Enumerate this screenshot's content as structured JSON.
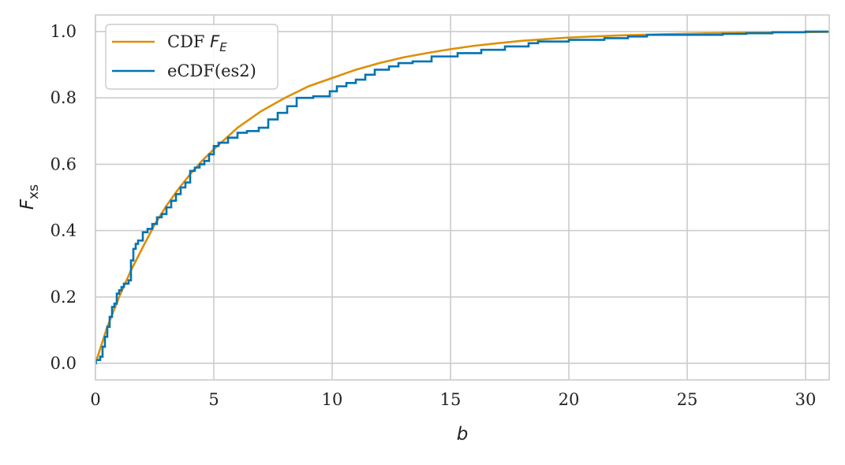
{
  "chart_data": {
    "type": "line",
    "title": "",
    "xlabel": "b",
    "ylabel": "F",
    "ylabel_subscript": "xs",
    "xlim": [
      0,
      31
    ],
    "ylim": [
      -0.05,
      1.05
    ],
    "xticks": [
      0,
      5,
      10,
      15,
      20,
      25,
      30
    ],
    "xtick_labels": [
      "0",
      "5",
      "10",
      "15",
      "20",
      "25",
      "30"
    ],
    "yticks": [
      0.0,
      0.2,
      0.4,
      0.6,
      0.8,
      1.0
    ],
    "ytick_labels": [
      "0.0",
      "0.2",
      "0.4",
      "0.6",
      "0.8",
      "1.0"
    ],
    "grid": true,
    "legend_position": "top-left",
    "series": [
      {
        "name": "CDF",
        "name_math": "F",
        "name_math_subscript": "E",
        "kind": "cdf",
        "color": "#de8f05",
        "x": [
          0,
          0.5,
          1,
          1.5,
          2,
          2.5,
          3,
          3.5,
          4,
          4.5,
          5,
          6,
          7,
          8,
          9,
          10,
          11,
          12,
          13,
          14,
          15,
          16,
          17,
          18,
          19,
          20,
          22,
          24,
          26,
          28,
          30,
          31
        ],
        "y": [
          0.0,
          0.11,
          0.2,
          0.28,
          0.35,
          0.418,
          0.475,
          0.525,
          0.57,
          0.61,
          0.645,
          0.71,
          0.76,
          0.8,
          0.835,
          0.86,
          0.885,
          0.905,
          0.922,
          0.935,
          0.947,
          0.957,
          0.965,
          0.972,
          0.977,
          0.982,
          0.988,
          0.992,
          0.995,
          0.997,
          0.998,
          0.999
        ]
      },
      {
        "name": "eCDF(es2)",
        "kind": "step",
        "color": "#0173b2",
        "x": [
          0.02,
          0.2,
          0.3,
          0.4,
          0.5,
          0.6,
          0.7,
          0.8,
          0.9,
          1.0,
          1.1,
          1.2,
          1.4,
          1.5,
          1.6,
          1.7,
          1.8,
          2.0,
          2.2,
          2.4,
          2.6,
          2.8,
          3.0,
          3.2,
          3.4,
          3.6,
          3.8,
          4.0,
          4.2,
          4.4,
          4.6,
          4.8,
          5.0,
          5.2,
          5.6,
          6.0,
          6.4,
          6.9,
          7.3,
          7.7,
          8.1,
          8.5,
          9.2,
          9.9,
          10.2,
          10.6,
          11.0,
          11.4,
          11.8,
          12.4,
          12.8,
          13.4,
          14.2,
          15.3,
          16.3,
          17.3,
          18.3,
          18.7,
          20.0,
          21.5,
          22.5,
          23.3,
          24.8,
          26.5,
          27.5,
          28.6,
          30.0,
          31.0
        ],
        "y": [
          0.01,
          0.02,
          0.05,
          0.08,
          0.11,
          0.14,
          0.17,
          0.18,
          0.21,
          0.22,
          0.23,
          0.24,
          0.25,
          0.31,
          0.345,
          0.36,
          0.37,
          0.395,
          0.405,
          0.42,
          0.44,
          0.45,
          0.47,
          0.49,
          0.51,
          0.53,
          0.545,
          0.58,
          0.59,
          0.6,
          0.61,
          0.63,
          0.655,
          0.665,
          0.68,
          0.695,
          0.7,
          0.71,
          0.735,
          0.755,
          0.775,
          0.8,
          0.805,
          0.82,
          0.835,
          0.845,
          0.855,
          0.87,
          0.885,
          0.895,
          0.905,
          0.91,
          0.925,
          0.935,
          0.945,
          0.955,
          0.965,
          0.97,
          0.975,
          0.98,
          0.985,
          0.99,
          0.99,
          0.993,
          0.995,
          0.998,
          1.0,
          1.0
        ]
      }
    ]
  }
}
